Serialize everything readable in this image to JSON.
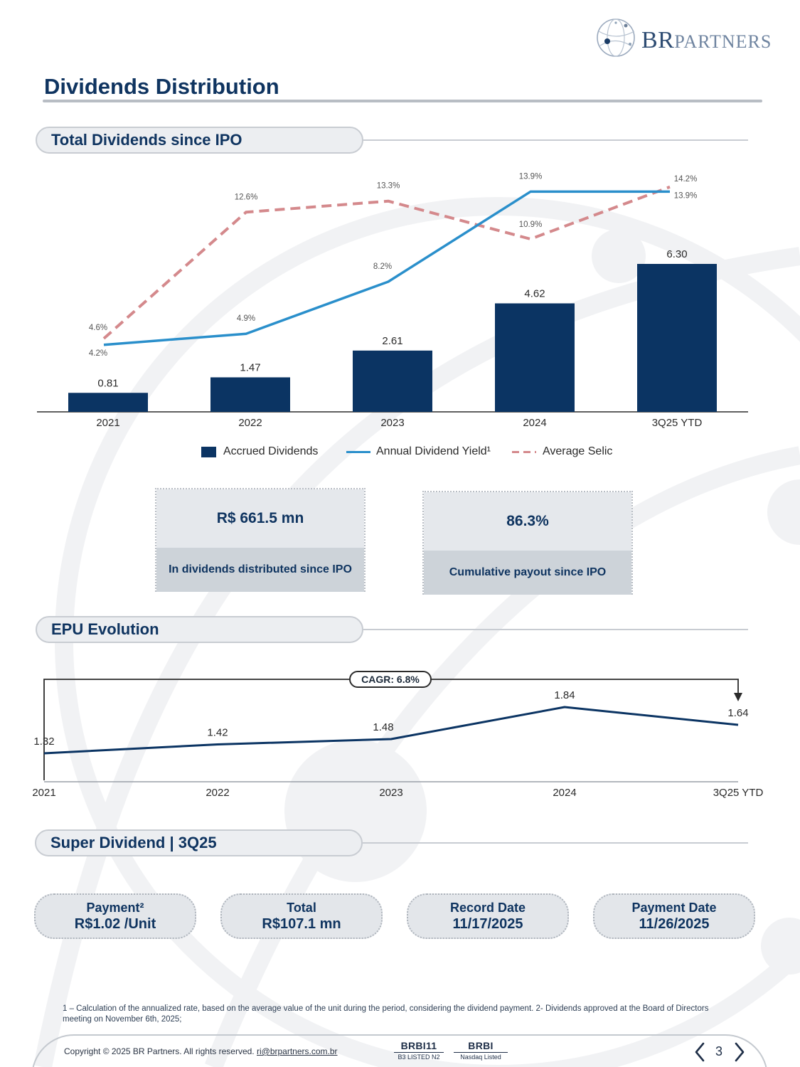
{
  "brand": {
    "logo_br": "BR",
    "logo_partners": "PARTNERS"
  },
  "page_title": "Dividends Distribution",
  "sections": {
    "dividends": "Total Dividends since IPO",
    "epu": "EPU Evolution",
    "super": "Super Dividend | 3Q25"
  },
  "chart_data": [
    {
      "type": "bar",
      "categories": [
        "2021",
        "2022",
        "2023",
        "2024",
        "3Q25 YTD"
      ],
      "series": [
        {
          "name": "Accrued Dividends",
          "type": "bar",
          "values": [
            0.81,
            1.47,
            2.61,
            4.62,
            6.3
          ],
          "labels": [
            "0.81",
            "1.47",
            "2.61",
            "4.62",
            "6.30"
          ],
          "color": "#0b3463"
        },
        {
          "name": "Annual Dividend Yield¹",
          "type": "line",
          "values": [
            4.2,
            4.9,
            8.2,
            13.9,
            13.9
          ],
          "labels": [
            "4.2%",
            "4.9%",
            "8.2%",
            "13.9%",
            "13.9%"
          ],
          "color": "#2a8fcb"
        },
        {
          "name": "Average Selic",
          "type": "line",
          "style": "dashed",
          "values": [
            4.6,
            12.6,
            13.3,
            10.9,
            14.2
          ],
          "labels": [
            "4.6%",
            "12.6%",
            "13.3%",
            "10.9%",
            "14.2%"
          ],
          "color": "#d4898c"
        }
      ],
      "legend": "bottom",
      "grid": false
    },
    {
      "type": "line",
      "categories": [
        "2021",
        "2022",
        "2023",
        "2024",
        "3Q25 YTD"
      ],
      "series": [
        {
          "values": [
            1.32,
            1.42,
            1.48,
            1.84,
            1.64
          ],
          "labels": [
            "1.32",
            "1.42",
            "1.48",
            "1.84",
            "1.64"
          ],
          "color": "#0b3463"
        }
      ],
      "annotation": "CAGR: 6.8%",
      "grid": false
    }
  ],
  "kpis": [
    {
      "value": "R$ 661.5 mn",
      "label": "In dividends distributed since IPO"
    },
    {
      "value": "86.3%",
      "label": "Cumulative payout since  IPO"
    }
  ],
  "super_dividend": [
    {
      "line1": "Payment²",
      "line2": "R$1.02 /Unit"
    },
    {
      "line1": "Total",
      "line2": "R$107.1 mn"
    },
    {
      "line1": "Record Date",
      "line2": "11/17/2025"
    },
    {
      "line1": "Payment Date",
      "line2": "11/26/2025"
    }
  ],
  "footnote": "1 – Calculation of the annualized rate, based on the average value of the unit during the period, considering the dividend payment. 2- Dividends approved at the Board of Directors meeting on November 6th, 2025;",
  "footer": {
    "copyright": "Copyright © 2025 BR Partners. All rights reserved.",
    "email": "ri@brpartners.com.br",
    "ticker1": "BRBI11",
    "ticker1_sub": "B3 LISTED N2",
    "ticker2": "BRBI",
    "ticker2_sub": "Nasdaq Listed",
    "page_number": "3"
  },
  "colors": {
    "navy": "#0b3463",
    "blue": "#2a8fcb",
    "salmon": "#d4898c",
    "title": "#0f3460"
  }
}
